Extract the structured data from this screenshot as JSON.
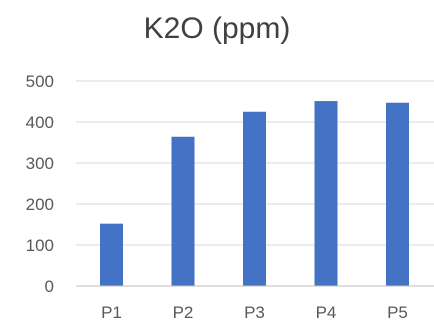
{
  "chart_data": {
    "type": "bar",
    "title": "K2O (ppm)",
    "categories": [
      "P1",
      "P2",
      "P3",
      "P4",
      "P5"
    ],
    "values": [
      152,
      364,
      425,
      451,
      447
    ],
    "ylim": [
      0,
      500
    ],
    "yticks": [
      0,
      100,
      200,
      300,
      400,
      500
    ],
    "grid": true,
    "legend": "none",
    "bar_color": "#4472C4",
    "grid_color": "#D9D9D9",
    "axis_color": "#BFBFBF",
    "title_color": "#404040",
    "label_color": "#595959"
  }
}
